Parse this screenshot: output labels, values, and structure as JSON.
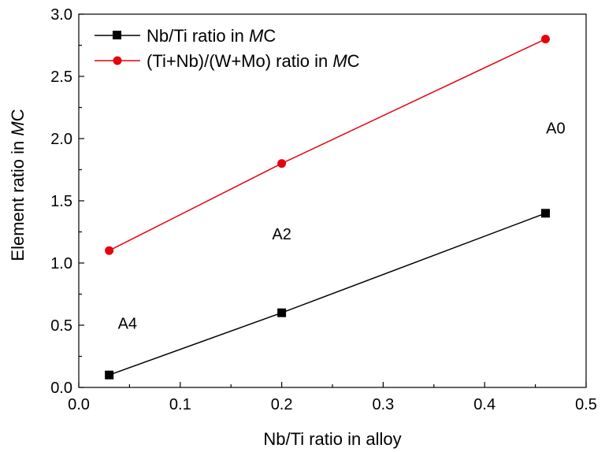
{
  "chart_data": {
    "type": "line",
    "title": "",
    "xlabel": "Nb/Ti ratio in alloy",
    "ylabel": {
      "prefix": "Element ratio in ",
      "em": "M",
      "suffix": "C"
    },
    "xlim": [
      0.0,
      0.5
    ],
    "ylim": [
      0.0,
      3.0
    ],
    "xticks": [
      "0.0",
      "0.1",
      "0.2",
      "0.3",
      "0.4",
      "0.5"
    ],
    "yticks": [
      "0.0",
      "0.5",
      "1.0",
      "1.5",
      "2.0",
      "2.5",
      "3.0"
    ],
    "grid": false,
    "legend_position": "top-left",
    "series": [
      {
        "name": {
          "prefix": "Nb/Ti ratio in ",
          "em": "M",
          "suffix": "C"
        },
        "marker": "square",
        "color": "#000000",
        "x": [
          0.03,
          0.2,
          0.46
        ],
        "y": [
          0.1,
          0.6,
          1.4
        ]
      },
      {
        "name": {
          "prefix": "(Ti+Nb)/(W+Mo) ratio in ",
          "em": "M",
          "suffix": "C"
        },
        "marker": "circle",
        "color": "#e8000b",
        "x": [
          0.03,
          0.2,
          0.46
        ],
        "y": [
          1.1,
          1.8,
          2.8
        ]
      }
    ],
    "annotations": [
      {
        "text": "A4",
        "x": 0.048,
        "y": 0.47
      },
      {
        "text": "A2",
        "x": 0.2,
        "y": 1.19
      },
      {
        "text": "A0",
        "x": 0.47,
        "y": 2.04
      }
    ]
  }
}
